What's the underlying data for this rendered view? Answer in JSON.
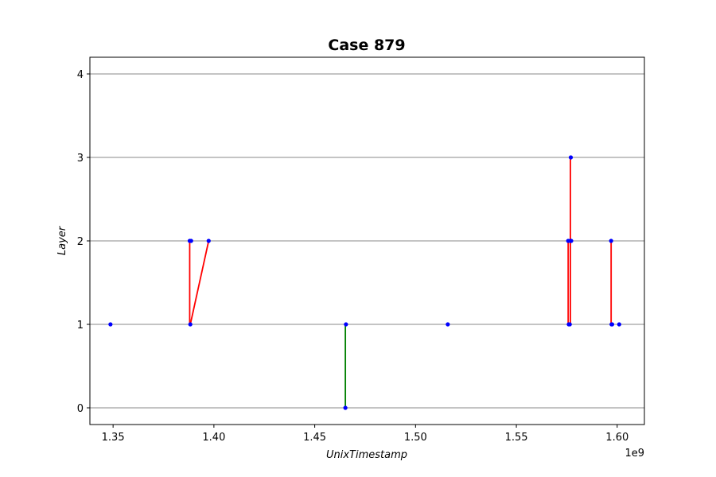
{
  "chart_data": {
    "type": "line",
    "title": "Case 879",
    "xlabel": "UnixTimestamp",
    "ylabel": "Layer",
    "x_offset_label": "1e9",
    "x_scale": 1000000000,
    "xlim": [
      1.3385,
      1.6135
    ],
    "ylim": [
      -0.2,
      4.2
    ],
    "x_ticks": [
      1.35,
      1.4,
      1.45,
      1.5,
      1.55,
      1.6
    ],
    "x_tick_labels": [
      "1.35",
      "1.40",
      "1.45",
      "1.50",
      "1.55",
      "1.60"
    ],
    "y_ticks": [
      0,
      1,
      2,
      3,
      4
    ],
    "y_tick_labels": [
      "0",
      "1",
      "2",
      "3",
      "4"
    ],
    "grid": "y-major",
    "points": [
      {
        "x": 1.3487,
        "y": 1
      },
      {
        "x": 1.388,
        "y": 2
      },
      {
        "x": 1.3883,
        "y": 1
      },
      {
        "x": 1.3887,
        "y": 2
      },
      {
        "x": 1.3974,
        "y": 2
      },
      {
        "x": 1.4652,
        "y": 0
      },
      {
        "x": 1.4655,
        "y": 1
      },
      {
        "x": 1.516,
        "y": 1
      },
      {
        "x": 1.5757,
        "y": 2
      },
      {
        "x": 1.576,
        "y": 1
      },
      {
        "x": 1.5765,
        "y": 1
      },
      {
        "x": 1.5768,
        "y": 2
      },
      {
        "x": 1.577,
        "y": 3
      },
      {
        "x": 1.5772,
        "y": 2
      },
      {
        "x": 1.597,
        "y": 2
      },
      {
        "x": 1.5972,
        "y": 1
      },
      {
        "x": 1.5975,
        "y": 1
      },
      {
        "x": 1.601,
        "y": 1
      }
    ],
    "segments": [
      {
        "x": [
          1.388,
          1.388
        ],
        "y": [
          2,
          1
        ],
        "color": "#ff0000"
      },
      {
        "x": [
          1.3883,
          1.3974
        ],
        "y": [
          1,
          2
        ],
        "color": "#ff0000"
      },
      {
        "x": [
          1.4652,
          1.4652
        ],
        "y": [
          0,
          1
        ],
        "color": "#008000"
      },
      {
        "x": [
          1.5757,
          1.5757
        ],
        "y": [
          1,
          2
        ],
        "color": "#ff0000"
      },
      {
        "x": [
          1.5768,
          1.5768
        ],
        "y": [
          1,
          3
        ],
        "color": "#ff0000"
      },
      {
        "x": [
          1.597,
          1.597
        ],
        "y": [
          1,
          2
        ],
        "color": "#ff0000"
      }
    ],
    "point_color": "#0000ff",
    "grid_color": "#b0b0b0"
  }
}
